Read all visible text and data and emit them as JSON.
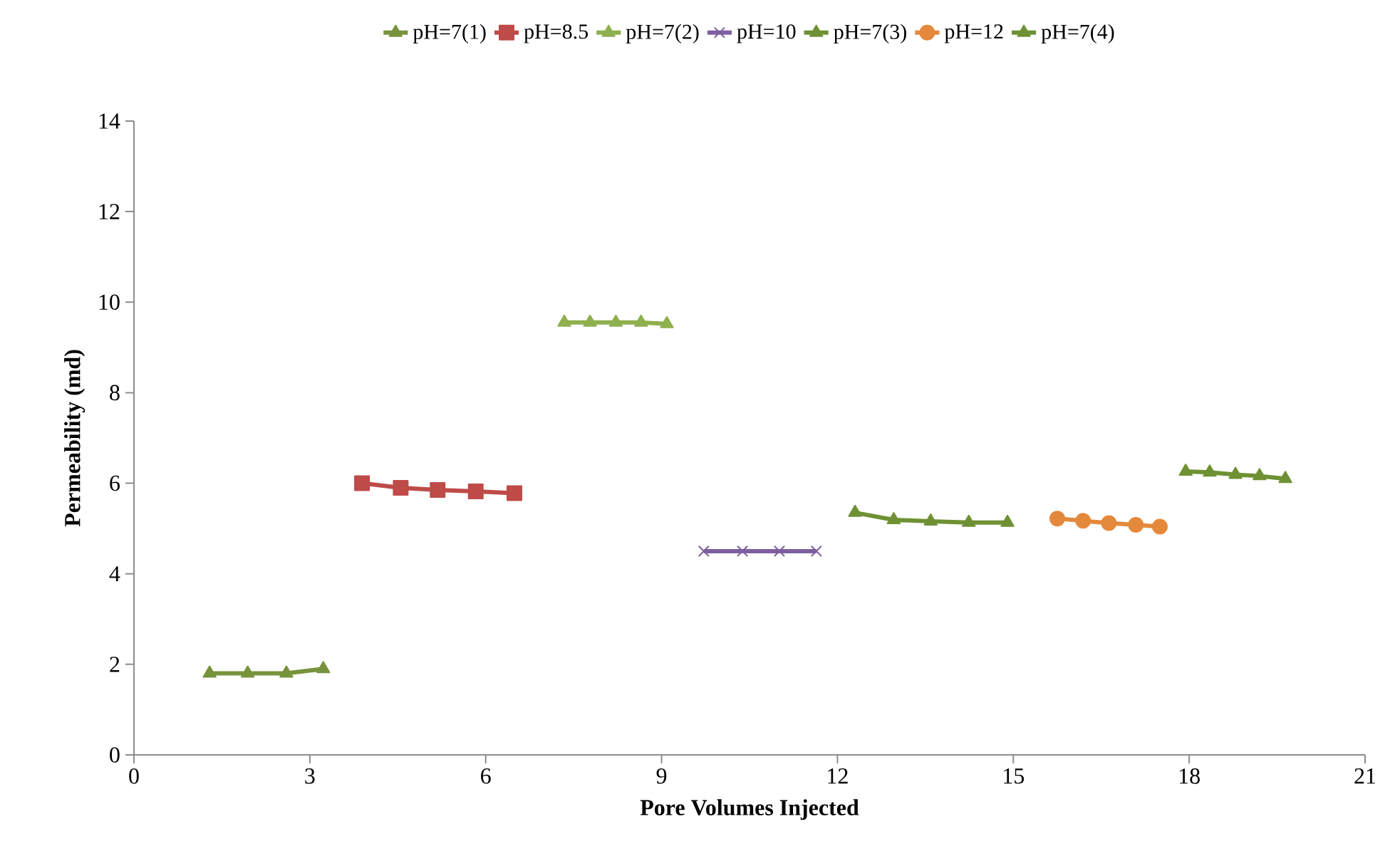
{
  "chart_data": {
    "type": "line",
    "xlabel": "Pore Volumes Injected",
    "ylabel": "Permeability (md)",
    "xlim": [
      0,
      21
    ],
    "ylim": [
      0,
      14
    ],
    "xticks": [
      0,
      3,
      6,
      9,
      12,
      15,
      18,
      21
    ],
    "yticks": [
      0,
      2,
      4,
      6,
      8,
      10,
      12,
      14
    ],
    "grid": false,
    "legend": "top",
    "line_style": "solid",
    "series": [
      {
        "name": "pH=7(1)",
        "color": "#77933c",
        "marker": "triangle",
        "x": [
          1.29,
          1.94,
          2.6,
          3.23
        ],
        "values": [
          1.8,
          1.8,
          1.8,
          1.9
        ]
      },
      {
        "name": "pH=8.5",
        "color": "#be4b48",
        "marker": "square",
        "x": [
          3.89,
          4.55,
          5.18,
          5.83,
          6.49
        ],
        "values": [
          6.0,
          5.9,
          5.85,
          5.82,
          5.78
        ]
      },
      {
        "name": "pH=7(2)",
        "color": "#8eb04e",
        "marker": "triangle",
        "x": [
          7.34,
          7.78,
          8.22,
          8.65,
          9.09
        ],
        "values": [
          9.55,
          9.55,
          9.55,
          9.55,
          9.52
        ]
      },
      {
        "name": "pH=10",
        "color": "#7d5fa0",
        "marker": "cross",
        "x": [
          9.72,
          10.38,
          11.01,
          11.64
        ],
        "values": [
          4.5,
          4.5,
          4.5,
          4.5
        ]
      },
      {
        "name": "pH=7(3)",
        "color": "#6f9134",
        "marker": "triangle",
        "x": [
          12.3,
          12.96,
          13.59,
          14.24,
          14.9
        ],
        "values": [
          5.35,
          5.19,
          5.16,
          5.13,
          5.13
        ]
      },
      {
        "name": "pH=12",
        "color": "#e4893c",
        "marker": "circle",
        "x": [
          15.75,
          16.19,
          16.63,
          17.09,
          17.5
        ],
        "values": [
          5.22,
          5.17,
          5.12,
          5.08,
          5.04
        ]
      },
      {
        "name": "pH=7(4)",
        "color": "#6f9134",
        "marker": "triangle",
        "x": [
          17.94,
          18.35,
          18.79,
          19.2,
          19.64
        ],
        "values": [
          6.26,
          6.24,
          6.19,
          6.16,
          6.1
        ]
      }
    ]
  }
}
